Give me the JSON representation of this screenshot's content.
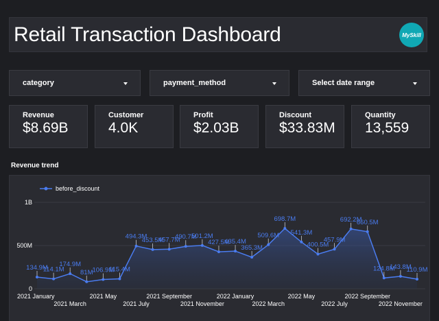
{
  "header": {
    "title": "Retail Transaction Dashboard",
    "logo_text": "MySkill",
    "logo_color": "#10a8b4"
  },
  "filters": [
    {
      "label": "category"
    },
    {
      "label": "payment_method"
    },
    {
      "label": "Select date range"
    }
  ],
  "kpis": [
    {
      "label": "Revenue",
      "value": "$8.69B"
    },
    {
      "label": "Customer",
      "value": "4.0K"
    },
    {
      "label": "Profit",
      "value": "$2.03B"
    },
    {
      "label": "Discount",
      "value": "$33.83M"
    },
    {
      "label": "Quantity",
      "value": "13,559"
    }
  ],
  "trend": {
    "title": "Revenue trend"
  },
  "chart_data": {
    "type": "area",
    "title": "Revenue trend",
    "legend": {
      "position": "top-left"
    },
    "line_color": "#4a7cf0",
    "y_ticks": [
      "0",
      "500M",
      "1B"
    ],
    "ylim": [
      0,
      1000
    ],
    "x_ticks_upper": [
      "2021 January",
      "2021 May",
      "2021 September",
      "2022 January",
      "2022 May",
      "2022 September"
    ],
    "x_ticks_lower": [
      "2021 March",
      "2021 July",
      "2021 November",
      "2022 March",
      "2022 July",
      "2022 November"
    ],
    "series": [
      {
        "name": "before_discount",
        "x": [
          "2021-01",
          "2021-02",
          "2021-03",
          "2021-04",
          "2021-05",
          "2021-06",
          "2021-07",
          "2021-08",
          "2021-09",
          "2021-10",
          "2021-11",
          "2021-12",
          "2022-01",
          "2022-02",
          "2022-03",
          "2022-04",
          "2022-05",
          "2022-06",
          "2022-07",
          "2022-08",
          "2022-09",
          "2022-10",
          "2022-11",
          "2022-12"
        ],
        "values": [
          134.9,
          114.1,
          174.9,
          81,
          106.9,
          115.4,
          494.3,
          453.5,
          457.7,
          490.7,
          501.2,
          427.5,
          435.4,
          365.3,
          509.6,
          698.7,
          541.3,
          400.5,
          457.9,
          692.2,
          660.5,
          124.8,
          143.8,
          110.9
        ],
        "labels": [
          "134.9M",
          "114.1M",
          "174.9M",
          "81M",
          "106.9M",
          "115.4M",
          "494.3M",
          "453.5M",
          "457.7M",
          "490.7M",
          "501.2M",
          "427.5M",
          "435.4M",
          "365.3M",
          "509.6M",
          "698.7M",
          "541.3M",
          "400.5M",
          "457.9M",
          "692.2M",
          "660.5M",
          "124.8M",
          "143.8M",
          "110.9M"
        ]
      }
    ]
  }
}
